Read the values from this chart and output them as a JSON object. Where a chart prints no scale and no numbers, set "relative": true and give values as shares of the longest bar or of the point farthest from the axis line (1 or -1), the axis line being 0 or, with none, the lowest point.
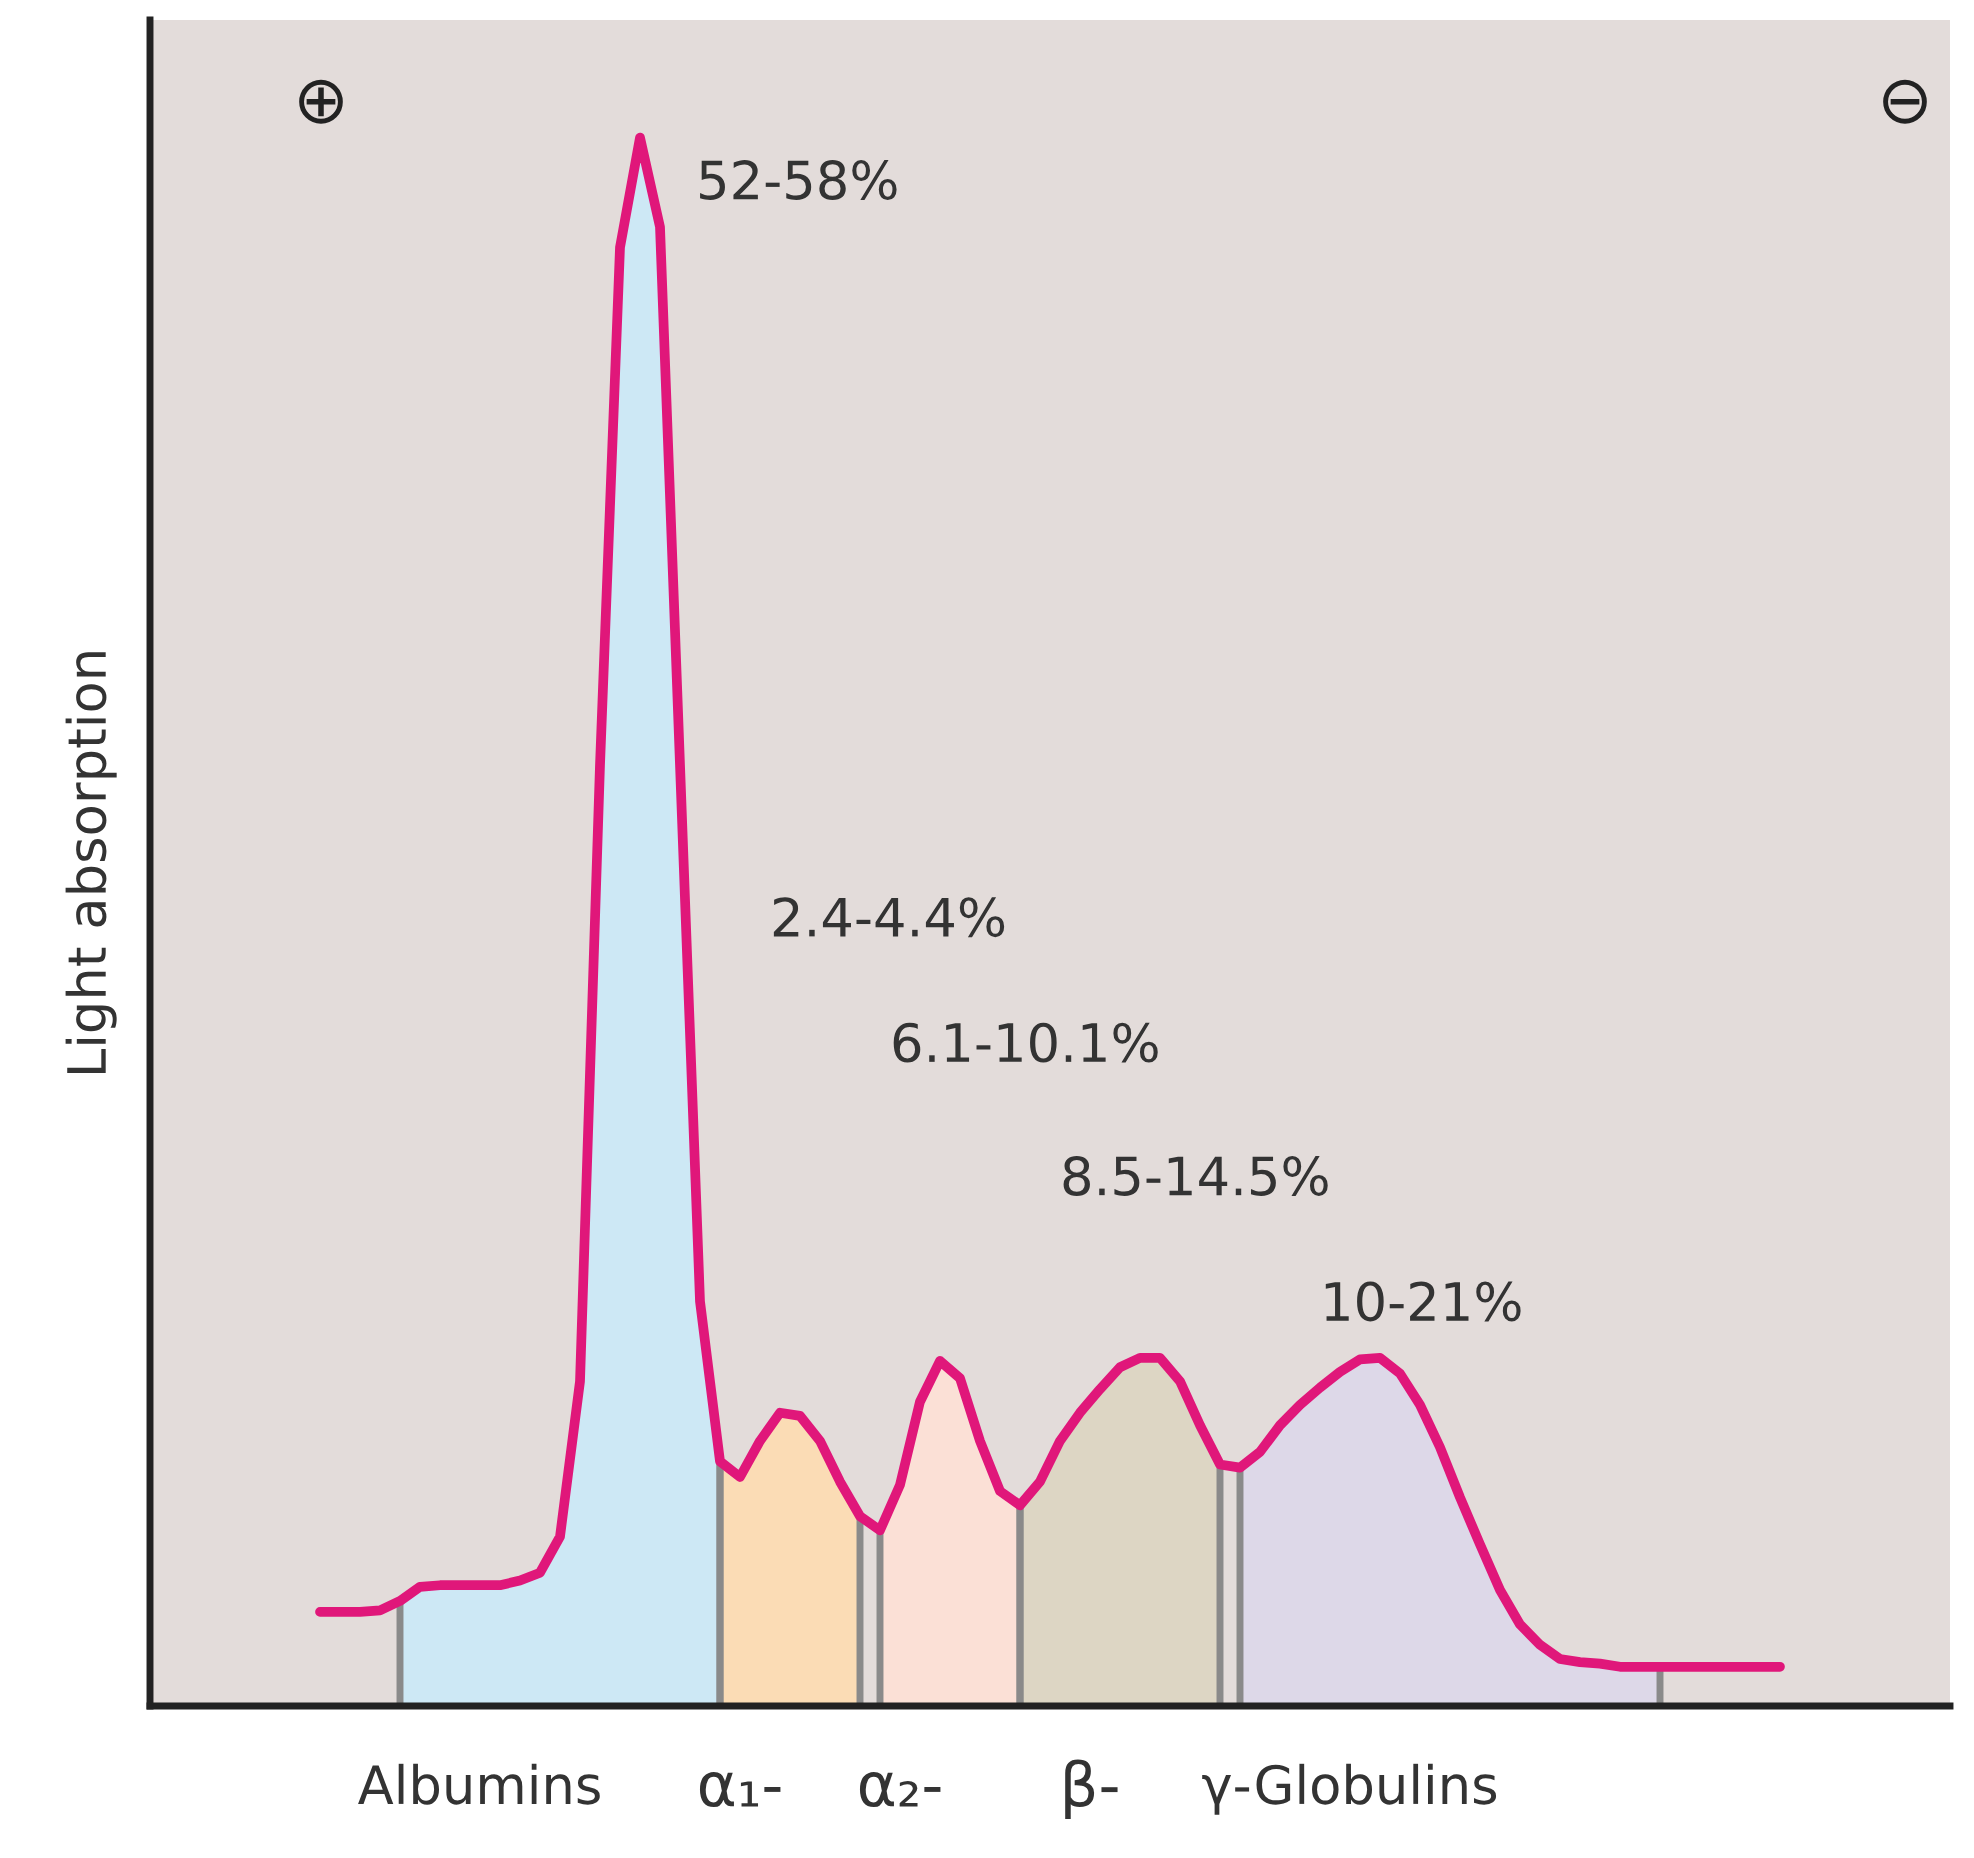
{
  "chart_data": {
    "type": "line",
    "relative": true,
    "ylabel": "Light absorption",
    "legend": false,
    "grid": false,
    "categories": [
      null,
      null,
      null,
      null,
      null,
      null,
      null,
      null,
      null,
      null,
      null,
      null,
      null,
      null,
      null,
      null,
      null,
      null,
      null,
      null,
      null,
      null,
      null,
      null,
      null,
      null,
      null,
      null,
      null,
      null,
      null,
      null,
      null,
      null,
      null,
      null,
      null,
      null,
      null,
      null,
      null,
      null,
      null,
      null,
      null,
      null,
      null,
      null,
      null,
      null,
      null,
      null,
      null,
      null,
      null,
      null,
      null,
      null,
      null,
      null,
      null,
      null,
      null,
      null,
      null,
      null,
      null,
      null,
      null,
      null,
      null,
      null,
      null,
      null
    ],
    "series": [
      {
        "type": "area",
        "color": "#cde8f5",
        "values": [
          null,
          null,
          null,
          null,
          0.067,
          0.076,
          0.077,
          0.077,
          0.077,
          0.077,
          0.08,
          0.085,
          0.108,
          0.207,
          0.6,
          0.93,
          1,
          0.943,
          0.6,
          0.258,
          0.156,
          null,
          null,
          null,
          null,
          null,
          null,
          null,
          null,
          null,
          null,
          null,
          null,
          null,
          null,
          null,
          null,
          null,
          null,
          null,
          null,
          null,
          null,
          null,
          null,
          null,
          null,
          null,
          null,
          null,
          null,
          null,
          null,
          null,
          null,
          null,
          null,
          null,
          null,
          null,
          null,
          null,
          null,
          null,
          null,
          null,
          null,
          null,
          null,
          null,
          null,
          null,
          null,
          null
        ]
      },
      {
        "type": "area",
        "color": "#fbdcb5",
        "values": [
          null,
          null,
          null,
          null,
          null,
          null,
          null,
          null,
          null,
          null,
          null,
          null,
          null,
          null,
          null,
          null,
          null,
          null,
          null,
          null,
          0.156,
          0.146,
          0.169,
          0.187,
          0.185,
          0.169,
          0.143,
          0.121,
          null,
          null,
          null,
          null,
          null,
          null,
          null,
          null,
          null,
          null,
          null,
          null,
          null,
          null,
          null,
          null,
          null,
          null,
          null,
          null,
          null,
          null,
          null,
          null,
          null,
          null,
          null,
          null,
          null,
          null,
          null,
          null,
          null,
          null,
          null,
          null,
          null,
          null,
          null,
          null,
          null,
          null,
          null,
          null,
          null,
          null
        ]
      },
      {
        "type": "area",
        "color": "#fbe0d6",
        "values": [
          null,
          null,
          null,
          null,
          null,
          null,
          null,
          null,
          null,
          null,
          null,
          null,
          null,
          null,
          null,
          null,
          null,
          null,
          null,
          null,
          null,
          null,
          null,
          null,
          null,
          null,
          null,
          null,
          0.112,
          0.141,
          0.194,
          0.22,
          0.209,
          0.169,
          0.137,
          0.128,
          null,
          null,
          null,
          null,
          null,
          null,
          null,
          null,
          null,
          null,
          null,
          null,
          null,
          null,
          null,
          null,
          null,
          null,
          null,
          null,
          null,
          null,
          null,
          null,
          null,
          null,
          null,
          null,
          null,
          null,
          null,
          null,
          null,
          null,
          null,
          null,
          null,
          null
        ]
      },
      {
        "type": "area",
        "color": "#ddd6c4",
        "values": [
          null,
          null,
          null,
          null,
          null,
          null,
          null,
          null,
          null,
          null,
          null,
          null,
          null,
          null,
          null,
          null,
          null,
          null,
          null,
          null,
          null,
          null,
          null,
          null,
          null,
          null,
          null,
          null,
          null,
          null,
          null,
          null,
          null,
          null,
          null,
          0.128,
          0.143,
          0.169,
          0.187,
          0.202,
          0.216,
          0.222,
          0.222,
          0.207,
          0.179,
          0.154,
          null,
          null,
          null,
          null,
          null,
          null,
          null,
          null,
          null,
          null,
          null,
          null,
          null,
          null,
          null,
          null,
          null,
          null,
          null,
          null,
          null,
          null,
          null,
          null,
          null,
          null,
          null,
          null
        ]
      },
      {
        "type": "area",
        "color": "#ddd8e8",
        "values": [
          null,
          null,
          null,
          null,
          null,
          null,
          null,
          null,
          null,
          null,
          null,
          null,
          null,
          null,
          null,
          null,
          null,
          null,
          null,
          null,
          null,
          null,
          null,
          null,
          null,
          null,
          null,
          null,
          null,
          null,
          null,
          null,
          null,
          null,
          null,
          null,
          null,
          null,
          null,
          null,
          null,
          null,
          null,
          null,
          null,
          null,
          0.152,
          0.162,
          0.179,
          0.192,
          0.203,
          0.213,
          0.221,
          0.222,
          0.212,
          0.192,
          0.165,
          0.133,
          0.103,
          0.074,
          0.052,
          0.039,
          0.03,
          0.028,
          0.027,
          0.025,
          0.025,
          0.025,
          null,
          null,
          null,
          null,
          null,
          null
        ]
      },
      {
        "color": "#e0177a",
        "values": [
          0.06,
          0.06,
          0.06,
          0.061,
          0.067,
          0.076,
          0.077,
          0.077,
          0.077,
          0.077,
          0.08,
          0.085,
          0.108,
          0.207,
          0.6,
          0.93,
          1,
          0.943,
          0.6,
          0.258,
          0.156,
          0.146,
          0.169,
          0.187,
          0.185,
          0.169,
          0.143,
          0.121,
          0.112,
          0.141,
          0.194,
          0.22,
          0.209,
          0.169,
          0.137,
          0.128,
          0.143,
          0.169,
          0.187,
          0.202,
          0.216,
          0.222,
          0.222,
          0.207,
          0.179,
          0.154,
          0.152,
          0.162,
          0.179,
          0.192,
          0.203,
          0.213,
          0.221,
          0.222,
          0.212,
          0.192,
          0.165,
          0.133,
          0.103,
          0.074,
          0.052,
          0.039,
          0.03,
          0.028,
          0.027,
          0.025,
          0.025,
          0.025,
          0.025,
          0.025,
          0.025,
          0.025,
          0.025,
          0.025
        ]
      }
    ],
    "annotations": [
      "⊕",
      "⊖",
      "52-58%",
      "2.4-4.4%",
      "6.1-10.1%",
      "8.5-14.5%",
      "10-21%",
      "Albumins",
      "α₁-",
      "α₂-",
      "β-",
      "γ-Globulins"
    ]
  }
}
